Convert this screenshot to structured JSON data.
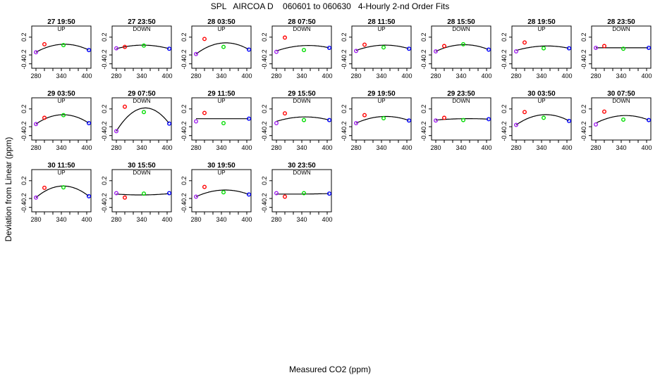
{
  "header": {
    "title": "SPL   AIRCOA D    060601 to 060630   4-Hourly 2-nd Order Fits"
  },
  "axes": {
    "xlabel": "Measured CO2 (ppm)",
    "ylabel": "Deviation from Linear (ppm)"
  },
  "colors": {
    "point_low": "#a020f0",
    "point_mid1": "#ff0000",
    "point_mid2": "#00dd00",
    "point_high": "#0000ff",
    "curve": "#000000"
  },
  "chart_data": {
    "type": "scatter",
    "xlim": [
      270,
      410
    ],
    "ylim": [
      -0.5,
      0.45
    ],
    "xticks": [
      280,
      340,
      400
    ],
    "xtick_labels": [
      "280",
      "340",
      "400"
    ],
    "yticks": [
      -0.4,
      -0.2,
      0.2
    ],
    "ytick_labels": [
      "-0.4",
      "-0.2",
      "0.2"
    ],
    "standard_x": [
      280,
      300,
      345,
      405
    ],
    "panels": [
      {
        "title": "27 19:50",
        "dir": "UP",
        "y": [
          -0.14,
          0.04,
          0.02,
          -0.09
        ],
        "curve": [
          -0.14,
          0.04,
          -0.09
        ]
      },
      {
        "title": "27 23:50",
        "dir": "DOWN",
        "y": [
          -0.05,
          -0.02,
          0.01,
          -0.06
        ],
        "curve": [
          -0.06,
          0.02,
          -0.06
        ]
      },
      {
        "title": "28 03:50",
        "dir": "UP",
        "y": [
          -0.18,
          0.16,
          -0.02,
          -0.08
        ],
        "curve": [
          -0.18,
          0.07,
          -0.08
        ]
      },
      {
        "title": "28 07:50",
        "dir": "DOWN",
        "y": [
          -0.13,
          0.19,
          -0.09,
          -0.04
        ],
        "curve": [
          -0.11,
          0.01,
          -0.04
        ]
      },
      {
        "title": "28 11:50",
        "dir": "UP",
        "y": [
          -0.11,
          0.03,
          -0.03,
          -0.06
        ],
        "curve": [
          -0.1,
          0.02,
          -0.06
        ]
      },
      {
        "title": "28 15:50",
        "dir": "DOWN",
        "y": [
          -0.12,
          0.0,
          0.04,
          -0.08
        ],
        "curve": [
          -0.12,
          0.03,
          -0.08
        ]
      },
      {
        "title": "28 19:50",
        "dir": "UP",
        "y": [
          -0.12,
          0.08,
          -0.05,
          -0.05
        ],
        "curve": [
          -0.1,
          0.0,
          -0.05
        ]
      },
      {
        "title": "28 23:50",
        "dir": "DOWN",
        "y": [
          -0.04,
          0.0,
          -0.06,
          -0.04
        ],
        "curve": [
          -0.04,
          -0.04,
          -0.04
        ]
      },
      {
        "title": "29 03:50",
        "dir": "UP",
        "y": [
          -0.14,
          0.0,
          0.06,
          -0.12
        ],
        "curve": [
          -0.14,
          0.07,
          -0.12
        ]
      },
      {
        "title": "29 07:50",
        "dir": "DOWN",
        "y": [
          -0.3,
          0.25,
          0.13,
          -0.13
        ],
        "curve": [
          -0.3,
          0.22,
          -0.13
        ]
      },
      {
        "title": "29 11:50",
        "dir": "UP",
        "y": [
          -0.08,
          0.11,
          -0.12,
          -0.02
        ],
        "curve": [
          -0.02,
          -0.02,
          -0.02
        ]
      },
      {
        "title": "29 15:50",
        "dir": "DOWN",
        "y": [
          -0.12,
          0.1,
          -0.05,
          -0.05
        ],
        "curve": [
          -0.08,
          0.02,
          -0.05
        ]
      },
      {
        "title": "29 19:50",
        "dir": "UP",
        "y": [
          -0.12,
          0.06,
          -0.01,
          -0.06
        ],
        "curve": [
          -0.12,
          0.03,
          -0.06
        ]
      },
      {
        "title": "29 23:50",
        "dir": "DOWN",
        "y": [
          -0.06,
          0.0,
          -0.05,
          -0.03
        ],
        "curve": [
          -0.05,
          -0.02,
          -0.03
        ]
      },
      {
        "title": "30 03:50",
        "dir": "UP",
        "y": [
          -0.16,
          0.13,
          0.0,
          -0.07
        ],
        "curve": [
          -0.16,
          0.07,
          -0.07
        ]
      },
      {
        "title": "30 07:50",
        "dir": "DOWN",
        "y": [
          -0.15,
          0.14,
          -0.04,
          -0.05
        ],
        "curve": [
          -0.12,
          0.05,
          -0.05
        ]
      },
      {
        "title": "30 11:50",
        "dir": "UP",
        "y": [
          -0.18,
          0.04,
          0.05,
          -0.15
        ],
        "curve": [
          -0.18,
          0.08,
          -0.15
        ]
      },
      {
        "title": "30 15:50",
        "dir": "DOWN",
        "y": [
          -0.08,
          -0.18,
          -0.09,
          -0.08
        ],
        "curve": [
          -0.1,
          -0.12,
          -0.09
        ]
      },
      {
        "title": "30 19:50",
        "dir": "UP",
        "y": [
          -0.16,
          0.06,
          -0.06,
          -0.11
        ],
        "curve": [
          -0.16,
          -0.01,
          -0.11
        ]
      },
      {
        "title": "30 23:50",
        "dir": "DOWN",
        "y": [
          -0.08,
          -0.16,
          -0.08,
          -0.09
        ],
        "curve": [
          -0.1,
          -0.1,
          -0.09
        ]
      }
    ]
  }
}
